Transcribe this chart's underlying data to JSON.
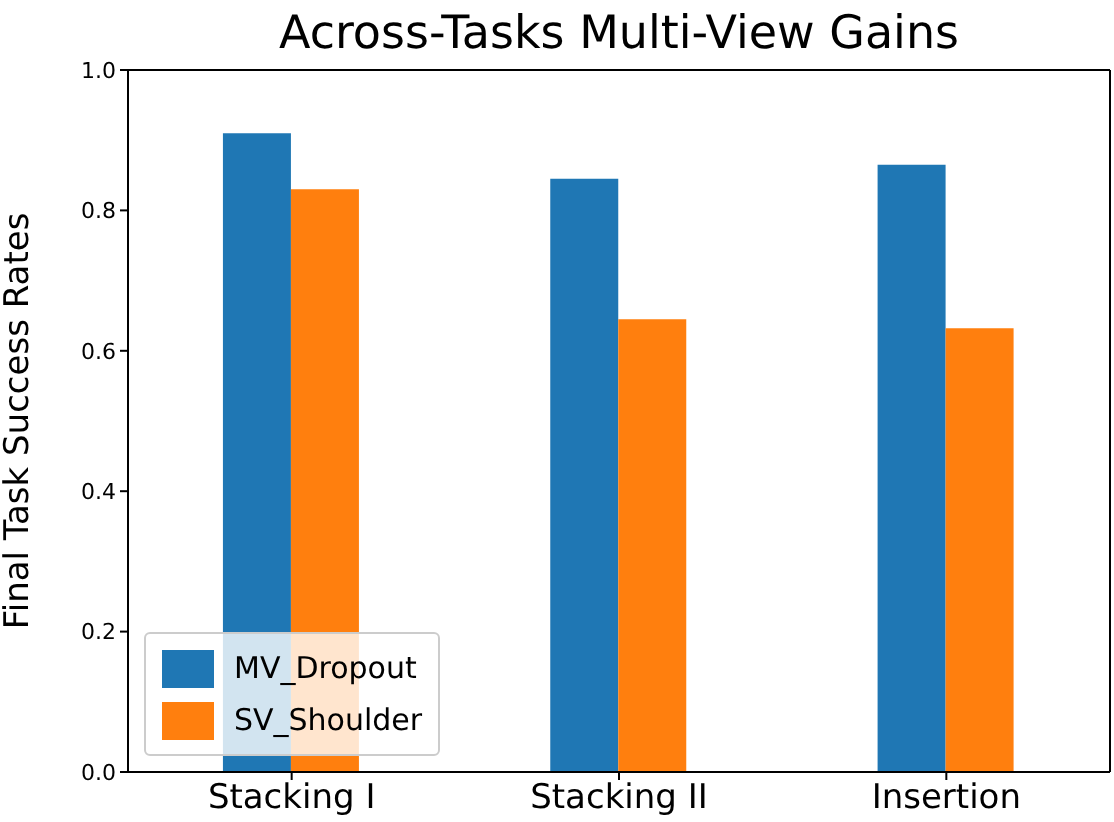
{
  "chart_data": {
    "type": "bar",
    "title": "Across-Tasks Multi-View Gains",
    "ylabel": "Final Task Success Rates",
    "categories": [
      "Stacking I",
      "Stacking II",
      "Insertion"
    ],
    "series": [
      {
        "name": "MV_Dropout",
        "color": "#1f77b4",
        "values": [
          0.91,
          0.845,
          0.865
        ]
      },
      {
        "name": "SV_Shoulder",
        "color": "#ff7f0e",
        "values": [
          0.83,
          0.645,
          0.632
        ]
      }
    ],
    "ylim": [
      0,
      1
    ],
    "yticks": [
      {
        "value": 0,
        "label": "0.0"
      },
      {
        "value": 0.2,
        "label": "0.2"
      },
      {
        "value": 0.4,
        "label": "0.4"
      },
      {
        "value": 0.6,
        "label": "0.6"
      },
      {
        "value": 0.8,
        "label": "0.8"
      },
      {
        "value": 1,
        "label": "1.0"
      }
    ],
    "grid": false,
    "legend": "bottom left"
  }
}
